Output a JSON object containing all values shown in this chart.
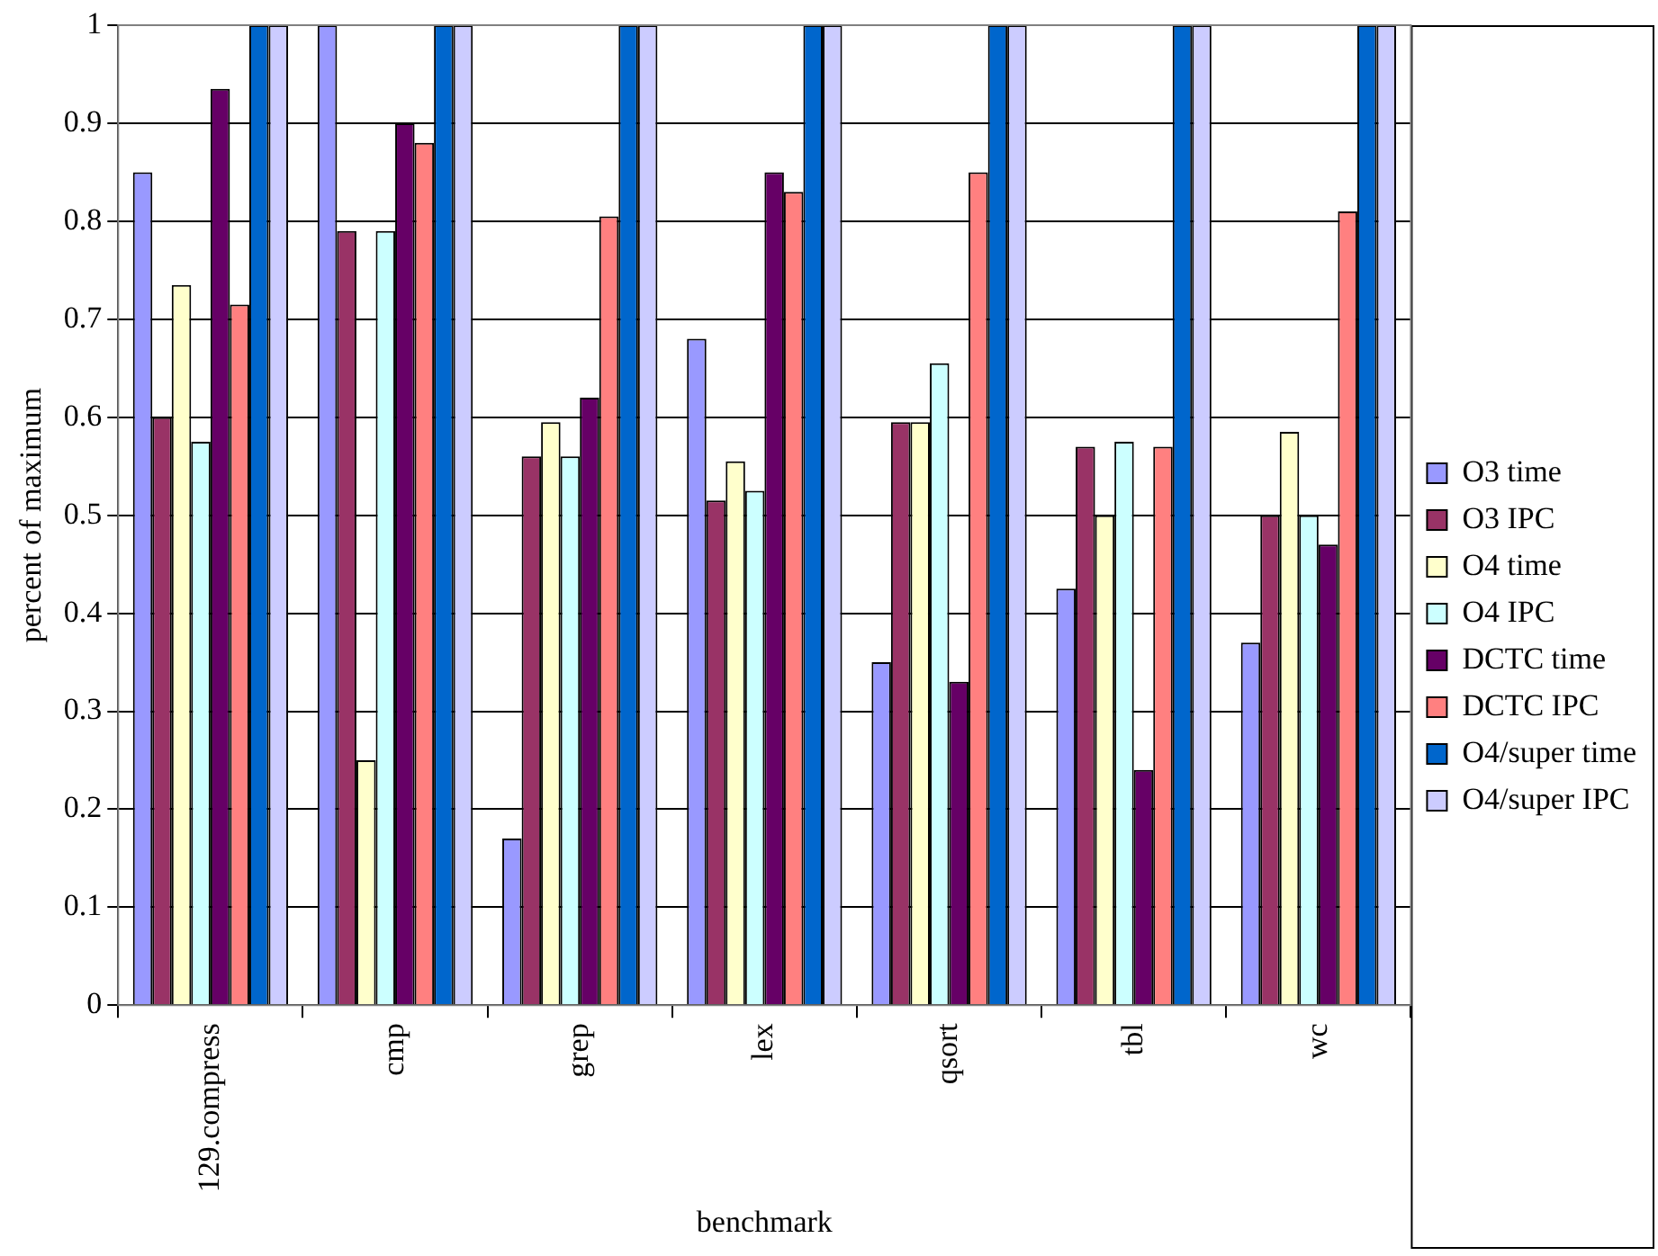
{
  "chart_data": {
    "type": "bar",
    "xlabel": "benchmark",
    "ylabel": "percent of maximum",
    "categories": [
      "129.compress",
      "cmp",
      "grep",
      "lex",
      "qsort",
      "tbl",
      "wc"
    ],
    "series": [
      {
        "name": "O3 time",
        "color": "#9999ff",
        "values": [
          0.85,
          1,
          0.17,
          0.68,
          0.35,
          0.425,
          0.37
        ]
      },
      {
        "name": "O3 IPC",
        "color": "#993366",
        "values": [
          0.6,
          0.79,
          0.56,
          0.515,
          0.595,
          0.57,
          0.5
        ]
      },
      {
        "name": "O4 time",
        "color": "#ffffcc",
        "values": [
          0.735,
          0.25,
          0.595,
          0.555,
          0.595,
          0.5,
          0.585
        ]
      },
      {
        "name": "O4 IPC",
        "color": "#ccffff",
        "values": [
          0.575,
          0.79,
          0.56,
          0.525,
          0.655,
          0.575,
          0.5
        ]
      },
      {
        "name": "DCTC time",
        "color": "#660066",
        "values": [
          0.935,
          0.9,
          0.62,
          0.85,
          0.33,
          0.24,
          0.47
        ]
      },
      {
        "name": "DCTC IPC",
        "color": "#ff8080",
        "values": [
          0.715,
          0.88,
          0.805,
          0.83,
          0.85,
          0.57,
          0.81
        ]
      },
      {
        "name": "O4/super time",
        "color": "#0066cc",
        "values": [
          1,
          1,
          1,
          1,
          1,
          1,
          1
        ]
      },
      {
        "name": "O4/super IPC",
        "color": "#ccccff",
        "values": [
          1,
          1,
          1,
          1,
          1,
          1,
          1
        ]
      }
    ],
    "ylim": [
      0,
      1
    ],
    "yticks": [
      0,
      0.1,
      0.2,
      0.3,
      0.4,
      0.5,
      0.6,
      0.7,
      0.8,
      0.9,
      1
    ],
    "grid": "y",
    "legend": "right"
  }
}
